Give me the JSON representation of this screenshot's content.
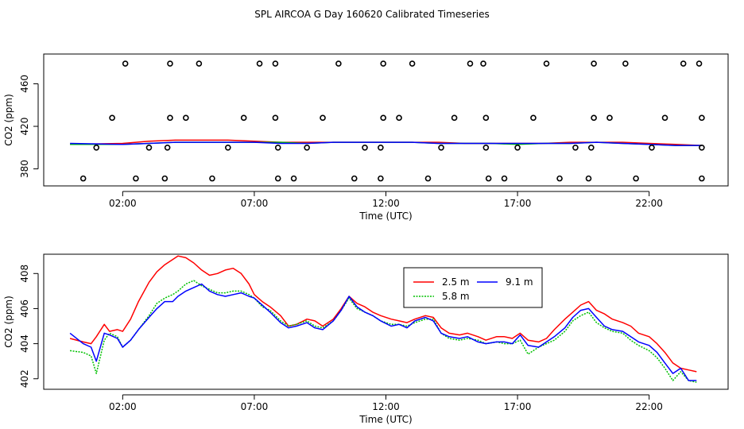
{
  "page_title": "SPL AIRCOA G  Day 160620  Calibrated Timeseries",
  "chart_data": [
    {
      "type": "scatter",
      "xlabel": "Time (UTC)",
      "ylabel": "CO2 (ppm)",
      "x_tick_labels": [
        "02:00",
        "07:00",
        "12:00",
        "17:00",
        "22:00"
      ],
      "x_tick_hours": [
        2,
        7,
        12,
        17,
        22
      ],
      "y_ticks": [
        380,
        420,
        460
      ],
      "xlim": [
        -1.0,
        25.0
      ],
      "ylim": [
        364,
        488
      ],
      "grid": false,
      "points": [
        [
          0.5,
          371
        ],
        [
          2.5,
          371
        ],
        [
          3.6,
          371
        ],
        [
          5.4,
          371
        ],
        [
          7.9,
          371
        ],
        [
          8.5,
          371
        ],
        [
          10.8,
          371
        ],
        [
          11.8,
          371
        ],
        [
          13.6,
          371
        ],
        [
          15.9,
          371
        ],
        [
          16.5,
          371
        ],
        [
          18.6,
          371
        ],
        [
          19.7,
          371
        ],
        [
          21.5,
          371
        ],
        [
          24.0,
          371
        ],
        [
          1.0,
          400
        ],
        [
          3.0,
          400
        ],
        [
          3.7,
          400
        ],
        [
          6.0,
          400
        ],
        [
          7.9,
          400
        ],
        [
          9.0,
          400
        ],
        [
          11.2,
          400
        ],
        [
          11.8,
          400
        ],
        [
          14.1,
          400
        ],
        [
          15.8,
          400
        ],
        [
          17.0,
          400
        ],
        [
          19.2,
          400
        ],
        [
          19.8,
          400
        ],
        [
          22.1,
          400
        ],
        [
          24.0,
          400
        ],
        [
          1.6,
          428
        ],
        [
          3.8,
          428
        ],
        [
          4.4,
          428
        ],
        [
          6.6,
          428
        ],
        [
          7.8,
          428
        ],
        [
          9.6,
          428
        ],
        [
          11.9,
          428
        ],
        [
          12.5,
          428
        ],
        [
          14.6,
          428
        ],
        [
          15.8,
          428
        ],
        [
          17.6,
          428
        ],
        [
          19.9,
          428
        ],
        [
          20.5,
          428
        ],
        [
          22.6,
          428
        ],
        [
          24.0,
          428
        ],
        [
          2.1,
          479
        ],
        [
          3.8,
          479
        ],
        [
          4.9,
          479
        ],
        [
          7.2,
          479
        ],
        [
          7.8,
          479
        ],
        [
          10.2,
          479
        ],
        [
          11.9,
          479
        ],
        [
          13.0,
          479
        ],
        [
          15.2,
          479
        ],
        [
          15.7,
          479
        ],
        [
          18.1,
          479
        ],
        [
          19.9,
          479
        ],
        [
          21.1,
          479
        ],
        [
          23.3,
          479
        ],
        [
          23.9,
          479
        ]
      ],
      "series": [
        {
          "color": "#ff0000",
          "x": [
            0,
            2,
            3,
            4,
            5,
            6,
            7,
            8,
            9,
            10,
            11,
            12,
            13,
            14,
            15,
            16,
            17,
            18,
            19,
            20,
            21,
            22,
            23,
            24
          ],
          "y": [
            403,
            404,
            406,
            407,
            407,
            407,
            406,
            405,
            405,
            405,
            405,
            405,
            405,
            405,
            404,
            404,
            404,
            404,
            405,
            405,
            405,
            404,
            403,
            402
          ]
        },
        {
          "color": "#00c000",
          "x": [
            0,
            2,
            3,
            4,
            5,
            6,
            7,
            8,
            9,
            10,
            11,
            12,
            13,
            14,
            15,
            16,
            17,
            18,
            19,
            20,
            21,
            22,
            23,
            24
          ],
          "y": [
            403,
            403,
            404,
            405,
            405,
            405,
            405,
            405,
            404,
            405,
            405,
            405,
            405,
            404,
            404,
            404,
            403,
            404,
            404,
            405,
            404,
            403,
            402,
            402
          ]
        },
        {
          "color": "#0000ff",
          "x": [
            0,
            2,
            3,
            4,
            5,
            6,
            7,
            8,
            9,
            10,
            11,
            12,
            13,
            14,
            15,
            16,
            17,
            18,
            19,
            20,
            21,
            22,
            23,
            24
          ],
          "y": [
            404,
            403,
            404,
            405,
            405,
            405,
            405,
            404,
            404,
            405,
            405,
            405,
            405,
            404,
            404,
            404,
            404,
            404,
            404,
            405,
            404,
            403,
            402,
            402
          ]
        }
      ]
    },
    {
      "type": "line",
      "xlabel": "Time (UTC)",
      "ylabel": "CO2 (ppm)",
      "x_tick_labels": [
        "02:00",
        "07:00",
        "12:00",
        "17:00",
        "22:00"
      ],
      "x_tick_hours": [
        2,
        7,
        12,
        17,
        22
      ],
      "y_ticks": [
        402,
        404,
        406,
        408
      ],
      "xlim": [
        -1.0,
        25.0
      ],
      "ylim": [
        401.4,
        409.1
      ],
      "grid": false,
      "legend_position": "top-center",
      "series": [
        {
          "name": "2.5 m",
          "color": "#ff0000",
          "style": "solid",
          "x": [
            0,
            0.5,
            0.8,
            1.0,
            1.3,
            1.5,
            1.8,
            2.0,
            2.3,
            2.6,
            3.0,
            3.3,
            3.6,
            3.9,
            4.1,
            4.4,
            4.7,
            5.0,
            5.3,
            5.6,
            5.9,
            6.2,
            6.5,
            6.8,
            7.0,
            7.3,
            7.6,
            8.0,
            8.3,
            8.6,
            9.0,
            9.3,
            9.6,
            10.0,
            10.3,
            10.6,
            10.9,
            11.2,
            11.5,
            11.8,
            12.2,
            12.5,
            12.8,
            13.1,
            13.5,
            13.8,
            14.1,
            14.4,
            14.8,
            15.1,
            15.5,
            15.8,
            16.2,
            16.5,
            16.8,
            17.1,
            17.4,
            17.8,
            18.1,
            18.4,
            18.8,
            19.1,
            19.4,
            19.7,
            20.0,
            20.3,
            20.6,
            21.0,
            21.3,
            21.6,
            22.0,
            22.3,
            22.6,
            22.9,
            23.2,
            23.5,
            23.8
          ],
          "y": [
            404.3,
            404.1,
            404.0,
            404.4,
            405.1,
            404.7,
            404.8,
            404.7,
            405.4,
            406.4,
            407.5,
            408.1,
            408.5,
            408.8,
            409.0,
            408.9,
            408.6,
            408.2,
            407.9,
            408.0,
            408.2,
            408.3,
            408.0,
            407.4,
            406.8,
            406.4,
            406.1,
            405.6,
            405.0,
            405.1,
            405.4,
            405.3,
            405.0,
            405.4,
            406.0,
            406.7,
            406.3,
            406.1,
            405.8,
            405.6,
            405.4,
            405.3,
            405.2,
            405.4,
            405.6,
            405.5,
            404.9,
            404.6,
            404.5,
            404.6,
            404.4,
            404.2,
            404.4,
            404.4,
            404.3,
            404.6,
            404.2,
            404.1,
            404.3,
            404.8,
            405.4,
            405.8,
            406.2,
            406.4,
            405.9,
            405.7,
            405.4,
            405.2,
            405.0,
            404.6,
            404.4,
            404.0,
            403.5,
            402.9,
            402.6,
            402.5,
            402.4
          ]
        },
        {
          "name": "5.8 m",
          "color": "#00c000",
          "style": "dotted",
          "x": [
            0,
            0.5,
            0.8,
            1.0,
            1.3,
            1.5,
            1.8,
            2.0,
            2.3,
            2.6,
            3.0,
            3.3,
            3.6,
            3.9,
            4.1,
            4.4,
            4.7,
            5.0,
            5.3,
            5.6,
            5.9,
            6.2,
            6.5,
            6.8,
            7.0,
            7.3,
            7.6,
            8.0,
            8.3,
            8.6,
            9.0,
            9.3,
            9.6,
            10.0,
            10.3,
            10.6,
            10.9,
            11.2,
            11.5,
            11.8,
            12.2,
            12.5,
            12.8,
            13.1,
            13.5,
            13.8,
            14.1,
            14.4,
            14.8,
            15.1,
            15.5,
            15.8,
            16.2,
            16.5,
            16.8,
            17.1,
            17.4,
            17.8,
            18.1,
            18.4,
            18.8,
            19.1,
            19.4,
            19.7,
            20.0,
            20.3,
            20.6,
            21.0,
            21.3,
            21.6,
            22.0,
            22.3,
            22.6,
            22.9,
            23.2,
            23.5,
            23.8
          ],
          "y": [
            403.6,
            403.5,
            403.3,
            402.3,
            404.2,
            404.6,
            404.4,
            403.8,
            404.2,
            404.8,
            405.6,
            406.3,
            406.6,
            406.8,
            407.0,
            407.4,
            407.6,
            407.3,
            407.1,
            406.9,
            406.9,
            407.0,
            407.0,
            406.8,
            406.6,
            406.1,
            405.9,
            405.3,
            405.0,
            405.1,
            405.3,
            405.0,
            404.9,
            405.3,
            405.9,
            406.6,
            406.0,
            405.8,
            405.6,
            405.3,
            405.1,
            405.1,
            405.0,
            405.2,
            405.4,
            405.4,
            404.6,
            404.3,
            404.2,
            404.3,
            404.2,
            404.0,
            404.1,
            404.0,
            404.0,
            404.2,
            403.4,
            403.8,
            404.0,
            404.2,
            404.7,
            405.3,
            405.6,
            405.8,
            405.2,
            404.9,
            404.7,
            404.6,
            404.2,
            403.9,
            403.6,
            403.2,
            402.6,
            401.9,
            402.4,
            401.9,
            401.8
          ]
        },
        {
          "name": "9.1 m",
          "color": "#0000ff",
          "style": "solid",
          "x": [
            0,
            0.5,
            0.8,
            1.0,
            1.3,
            1.5,
            1.8,
            2.0,
            2.3,
            2.6,
            3.0,
            3.3,
            3.6,
            3.9,
            4.1,
            4.4,
            4.7,
            5.0,
            5.3,
            5.6,
            5.9,
            6.2,
            6.5,
            6.8,
            7.0,
            7.3,
            7.6,
            8.0,
            8.3,
            8.6,
            9.0,
            9.3,
            9.6,
            10.0,
            10.3,
            10.6,
            10.9,
            11.2,
            11.5,
            11.8,
            12.2,
            12.5,
            12.8,
            13.1,
            13.5,
            13.8,
            14.1,
            14.4,
            14.8,
            15.1,
            15.5,
            15.8,
            16.2,
            16.5,
            16.8,
            17.1,
            17.4,
            17.8,
            18.1,
            18.4,
            18.8,
            19.1,
            19.4,
            19.7,
            20.0,
            20.3,
            20.6,
            21.0,
            21.3,
            21.6,
            22.0,
            22.3,
            22.6,
            22.9,
            23.2,
            23.5,
            23.8
          ],
          "y": [
            404.6,
            404.0,
            403.8,
            403.0,
            404.6,
            404.5,
            404.3,
            403.8,
            404.2,
            404.8,
            405.5,
            406.0,
            406.4,
            406.4,
            406.7,
            407.0,
            407.2,
            407.4,
            407.0,
            406.8,
            406.7,
            406.8,
            406.9,
            406.7,
            406.6,
            406.2,
            405.8,
            405.2,
            404.9,
            405.0,
            405.2,
            404.9,
            404.8,
            405.3,
            405.9,
            406.7,
            406.1,
            405.8,
            405.6,
            405.3,
            405.0,
            405.1,
            404.9,
            405.3,
            405.5,
            405.3,
            404.6,
            404.4,
            404.3,
            404.4,
            404.1,
            404.0,
            404.1,
            404.1,
            404.0,
            404.5,
            403.9,
            403.8,
            404.1,
            404.4,
            404.9,
            405.5,
            405.9,
            406.0,
            405.5,
            405.0,
            404.8,
            404.7,
            404.4,
            404.1,
            403.9,
            403.5,
            402.9,
            402.3,
            402.6,
            401.9,
            401.9
          ]
        }
      ]
    }
  ]
}
